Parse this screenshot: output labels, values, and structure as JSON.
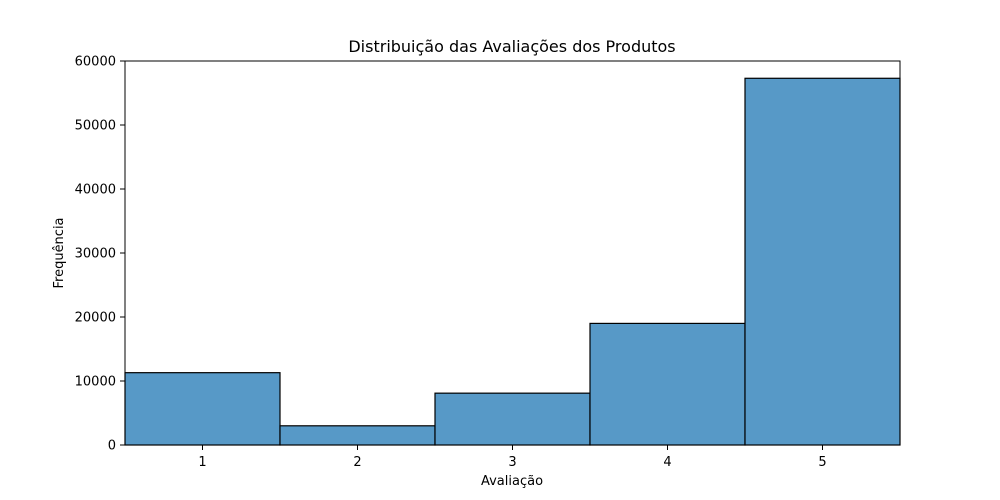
{
  "chart_data": {
    "type": "bar",
    "title": "Distribuição das Avaliações dos Produtos",
    "xlabel": "Avaliação",
    "ylabel": "Frequência",
    "categories": [
      "1",
      "2",
      "3",
      "4",
      "5"
    ],
    "values": [
      11300,
      3000,
      8100,
      19000,
      57300
    ],
    "xlim": [
      0.5,
      5.5
    ],
    "ylim": [
      0,
      60000
    ],
    "yticks": [
      0,
      10000,
      20000,
      30000,
      40000,
      50000,
      60000
    ],
    "grid": false,
    "legend": "none",
    "bar_color": "#5799c7",
    "edge_color": "#000000"
  }
}
